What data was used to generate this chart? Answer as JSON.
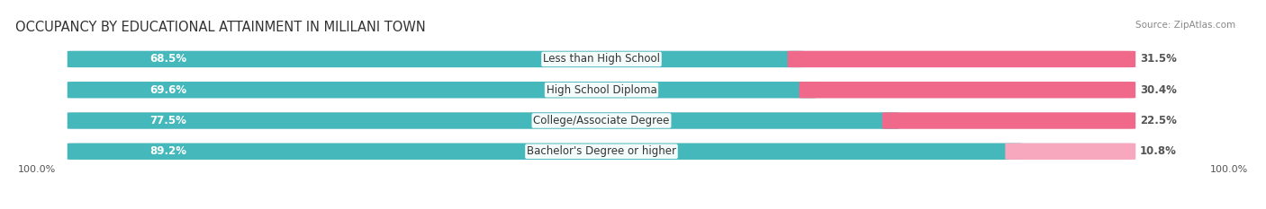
{
  "title": "OCCUPANCY BY EDUCATIONAL ATTAINMENT IN MILILANI TOWN",
  "source": "Source: ZipAtlas.com",
  "categories": [
    "Less than High School",
    "High School Diploma",
    "College/Associate Degree",
    "Bachelor's Degree or higher"
  ],
  "owner_pct": [
    68.5,
    69.6,
    77.5,
    89.2
  ],
  "renter_pct": [
    31.5,
    30.4,
    22.5,
    10.8
  ],
  "owner_color": "#45B8BC",
  "renter_color": "#F0688A",
  "renter_color_light": "#F7A8BF",
  "bar_bg_color": "#E4E4EC",
  "background_color": "#FFFFFF",
  "title_fontsize": 10.5,
  "label_fontsize": 8.5,
  "pct_fontsize": 8.5,
  "source_fontsize": 7.5,
  "legend_fontsize": 8.5,
  "axis_label_left": "100.0%",
  "axis_label_right": "100.0%"
}
